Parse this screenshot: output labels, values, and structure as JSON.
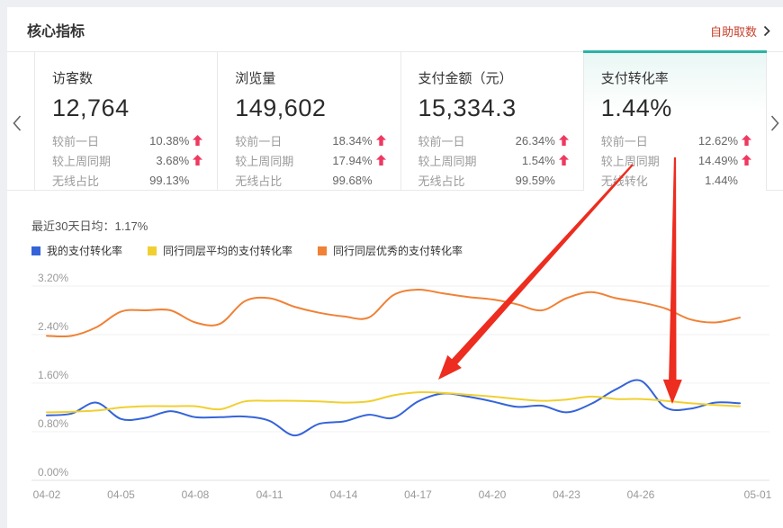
{
  "header": {
    "title": "核心指标",
    "export_link": "自助取数"
  },
  "cards": [
    {
      "title": "访客数",
      "value": "12,764",
      "selected": false,
      "rows": [
        {
          "label": "较前一日",
          "value": "10.38%",
          "arrow": true
        },
        {
          "label": "较上周同期",
          "value": "3.68%",
          "arrow": true
        },
        {
          "label": "无线占比",
          "value": "99.13%",
          "arrow": false
        }
      ]
    },
    {
      "title": "浏览量",
      "value": "149,602",
      "selected": false,
      "rows": [
        {
          "label": "较前一日",
          "value": "18.34%",
          "arrow": true
        },
        {
          "label": "较上周同期",
          "value": "17.94%",
          "arrow": true
        },
        {
          "label": "无线占比",
          "value": "99.68%",
          "arrow": false
        }
      ]
    },
    {
      "title": "支付金额（元）",
      "value": "15,334.3",
      "selected": false,
      "rows": [
        {
          "label": "较前一日",
          "value": "26.34%",
          "arrow": true
        },
        {
          "label": "较上周同期",
          "value": "1.54%",
          "arrow": true
        },
        {
          "label": "无线占比",
          "value": "99.59%",
          "arrow": false
        }
      ]
    },
    {
      "title": "支付转化率",
      "value": "1.44%",
      "selected": true,
      "rows": [
        {
          "label": "较前一日",
          "value": "12.62%",
          "arrow": true
        },
        {
          "label": "较上周同期",
          "value": "14.49%",
          "arrow": true
        },
        {
          "label": "无线转化",
          "value": "1.44%",
          "arrow": false
        }
      ]
    }
  ],
  "chart": {
    "summary": "最近30天日均：1.17%"
  },
  "chart_data": {
    "type": "line",
    "unit": "%",
    "title": "支付转化率 最近30天",
    "x": [
      "04-02",
      "04-03",
      "04-04",
      "04-05",
      "04-06",
      "04-07",
      "04-08",
      "04-09",
      "04-10",
      "04-11",
      "04-12",
      "04-13",
      "04-14",
      "04-15",
      "04-16",
      "04-17",
      "04-18",
      "04-19",
      "04-20",
      "04-21",
      "04-22",
      "04-23",
      "04-24",
      "04-25",
      "04-26",
      "04-27",
      "04-28",
      "04-29",
      "04-30"
    ],
    "series": [
      {
        "name": "我的支付转化率",
        "color": "#3564d9",
        "values": [
          1.07,
          1.1,
          1.28,
          1.01,
          1.03,
          1.14,
          1.04,
          1.04,
          1.05,
          0.98,
          0.74,
          0.93,
          0.97,
          1.08,
          1.03,
          1.3,
          1.43,
          1.38,
          1.3,
          1.21,
          1.23,
          1.12,
          1.26,
          1.5,
          1.64,
          1.2,
          1.18,
          1.28,
          1.27
        ]
      },
      {
        "name": "同行同层平均的支付转化率",
        "color": "#f0d031",
        "values": [
          1.12,
          1.13,
          1.15,
          1.2,
          1.22,
          1.22,
          1.22,
          1.17,
          1.3,
          1.31,
          1.31,
          1.3,
          1.28,
          1.3,
          1.4,
          1.45,
          1.44,
          1.41,
          1.38,
          1.34,
          1.31,
          1.33,
          1.38,
          1.34,
          1.34,
          1.31,
          1.27,
          1.24,
          1.22
        ]
      },
      {
        "name": "同行同层优秀的支付转化率",
        "color": "#f08136",
        "values": [
          2.38,
          2.38,
          2.52,
          2.78,
          2.8,
          2.8,
          2.6,
          2.58,
          2.95,
          3.0,
          2.86,
          2.76,
          2.7,
          2.68,
          3.05,
          3.14,
          3.08,
          3.02,
          2.98,
          2.9,
          2.8,
          3.0,
          3.1,
          3.0,
          2.93,
          2.83,
          2.65,
          2.6,
          2.68
        ]
      }
    ],
    "y_ticks": [
      "0.00%",
      "0.80%",
      "1.60%",
      "2.40%",
      "3.20%"
    ],
    "x_tick_labels": [
      "04-02",
      "04-05",
      "04-08",
      "04-11",
      "04-14",
      "04-17",
      "04-20",
      "04-23",
      "04-26",
      "05-01"
    ],
    "ylim": [
      0,
      3.2
    ],
    "grid": true,
    "legend_position": "top-left",
    "annotations": [
      {
        "type": "arrow",
        "color": "#ec2d1f",
        "from": [
          703,
          183
        ],
        "to": [
          487,
          422
        ]
      },
      {
        "type": "arrow",
        "color": "#ec2d1f",
        "from": [
          750,
          175
        ],
        "to": [
          747,
          449
        ]
      }
    ]
  }
}
